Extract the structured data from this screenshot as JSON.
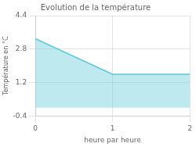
{
  "chart_data": {
    "type": "area",
    "title": "Evolution de la température",
    "xlabel": "heure par heure",
    "ylabel": "Température en °C",
    "x": [
      0,
      1,
      2
    ],
    "values": [
      3.3,
      1.6,
      1.6
    ],
    "color": "#5bc8d8",
    "xlim": [
      0,
      2
    ],
    "ylim": [
      -0.4,
      4.4
    ],
    "xticks": [
      0,
      1,
      2
    ],
    "yticks": [
      -0.4,
      1.2,
      2.8,
      4.4
    ],
    "grid": true
  }
}
